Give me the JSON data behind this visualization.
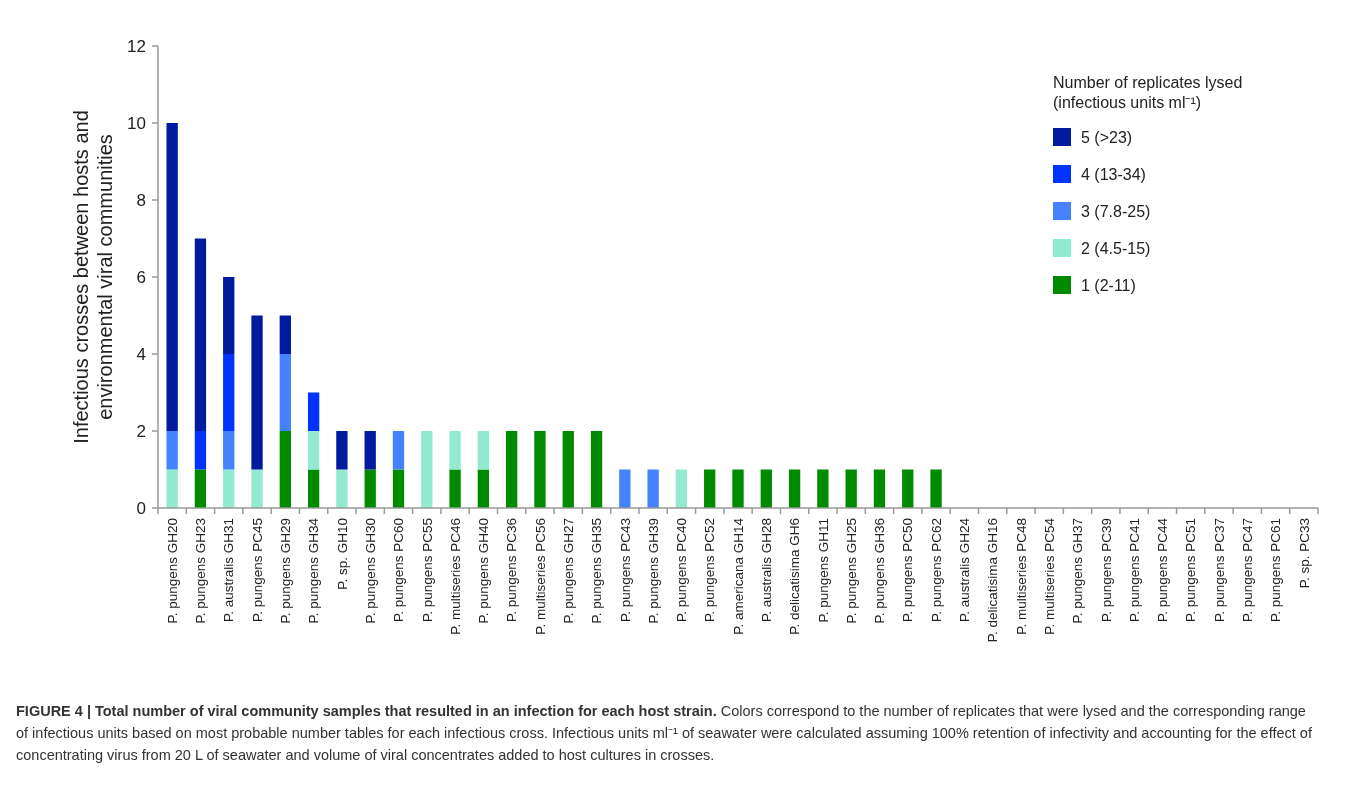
{
  "chart_data": {
    "type": "bar",
    "stacked": true,
    "ylabel": "Infectious crosses between hosts and\nenvironmental viral communities",
    "legend_title": "Number of replicates lysed\n(infectious units ml⁻¹)",
    "legend": "top right",
    "grid": false,
    "categories": [
      "P. pungens GH20",
      "P. pungens GH23",
      "P. australis GH31",
      "P. pungens PC45",
      "P. pungens GH29",
      "P. pungens GH34",
      "P. sp. GH10",
      "P. pungens GH30",
      "P. pungens PC60",
      "P. pungens PC55",
      "P. multiseries PC46",
      "P. pungens GH40",
      "P. pungens PC36",
      "P. multiseries PC56",
      "P. pungens GH27",
      "P. pungens GH35",
      "P. pungens PC43",
      "P. pungens GH39",
      "P. pungens PC40",
      "P. pungens PC52",
      "P. americana GH14",
      "P. australis GH28",
      "P. delicatisima GH6",
      "P. pungens GH11",
      "P. pungens GH25",
      "P. pungens GH36",
      "P. pungens PC50",
      "P. pungens PC62",
      "P. australis GH24",
      "P. delicatisima GH16",
      "P. multiseries PC48",
      "P. multiseries PC54",
      "P. pungens GH37",
      "P. pungens PC39",
      "P. pungens PC41",
      "P. pungens PC44",
      "P. pungens PC51",
      "P. pungens PC37",
      "P. pungens PC47",
      "P. pungens PC61",
      "P. sp. PC33"
    ],
    "series": [
      {
        "name": "1 (2-11)",
        "color": "#008a00",
        "values": [
          0,
          1,
          0,
          0,
          2,
          1,
          0,
          1,
          1,
          0,
          1,
          1,
          2,
          2,
          2,
          2,
          0,
          0,
          0,
          1,
          1,
          1,
          1,
          1,
          1,
          1,
          1,
          1,
          0,
          0,
          0,
          0,
          0,
          0,
          0,
          0,
          0,
          0,
          0,
          0,
          0
        ]
      },
      {
        "name": "2 (4.5-15)",
        "color": "#92ebd0",
        "values": [
          1,
          0,
          1,
          1,
          0,
          1,
          1,
          0,
          0,
          2,
          1,
          1,
          0,
          0,
          0,
          0,
          0,
          0,
          1,
          0,
          0,
          0,
          0,
          0,
          0,
          0,
          0,
          0,
          0,
          0,
          0,
          0,
          0,
          0,
          0,
          0,
          0,
          0,
          0,
          0,
          0
        ]
      },
      {
        "name": "3 (7.8-25)",
        "color": "#4482ff",
        "values": [
          1,
          0,
          1,
          0,
          2,
          0,
          0,
          0,
          1,
          0,
          0,
          0,
          0,
          0,
          0,
          0,
          1,
          1,
          0,
          0,
          0,
          0,
          0,
          0,
          0,
          0,
          0,
          0,
          0,
          0,
          0,
          0,
          0,
          0,
          0,
          0,
          0,
          0,
          0,
          0,
          0
        ]
      },
      {
        "name": "4 (13-34)",
        "color": "#0033ff",
        "values": [
          0,
          1,
          2,
          0,
          0,
          1,
          0,
          0,
          0,
          0,
          0,
          0,
          0,
          0,
          0,
          0,
          0,
          0,
          0,
          0,
          0,
          0,
          0,
          0,
          0,
          0,
          0,
          0,
          0,
          0,
          0,
          0,
          0,
          0,
          0,
          0,
          0,
          0,
          0,
          0,
          0
        ]
      },
      {
        "name": "5 (>23)",
        "color": "#001b9e",
        "values": [
          8,
          5,
          2,
          4,
          1,
          0,
          1,
          1,
          0,
          0,
          0,
          0,
          0,
          0,
          0,
          0,
          0,
          0,
          0,
          0,
          0,
          0,
          0,
          0,
          0,
          0,
          0,
          0,
          0,
          0,
          0,
          0,
          0,
          0,
          0,
          0,
          0,
          0,
          0,
          0,
          0
        ]
      }
    ],
    "ylim": [
      0,
      12
    ],
    "yticks": [
      0,
      2,
      4,
      6,
      8,
      10,
      12
    ],
    "annotations": [
      "FIGURE 4 | Total number of viral community samples that resulted in an infection for each host strain.",
      "Colors correspond to the number of replicates that were lysed and the corresponding range of infectious units based on most probable number tables for each infectious cross. Infectious units ml⁻¹ of seawater were calculated assuming 100% retention of infectivity and accounting for the effect of concentrating virus from 20 L of seawater and volume of viral concentrates added to host cultures in crosses."
    ]
  }
}
